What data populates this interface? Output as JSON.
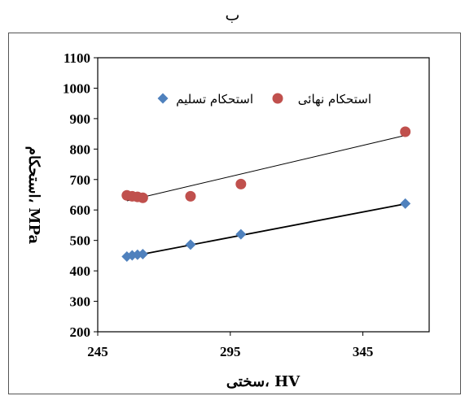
{
  "header": {
    "label": "ب"
  },
  "chart_data": {
    "type": "scatter",
    "title": "",
    "xlabel": "سختی، HV",
    "ylabel": "استحکام، MPa",
    "xlim": [
      245,
      370
    ],
    "ylim": [
      200,
      1100
    ],
    "xticks": [
      245,
      295,
      345
    ],
    "yticks": [
      200,
      300,
      400,
      500,
      600,
      700,
      800,
      900,
      1000,
      1100
    ],
    "grid": false,
    "legend_position": "top",
    "series": [
      {
        "name": "استحکام نهائی",
        "marker": "circle",
        "color": "#C0504D",
        "points": [
          [
            256,
            648
          ],
          [
            258,
            645
          ],
          [
            260,
            643
          ],
          [
            262,
            640
          ],
          [
            280,
            645
          ],
          [
            299,
            685
          ],
          [
            361,
            857
          ]
        ],
        "trendline": [
          [
            256,
            630
          ],
          [
            361,
            845
          ]
        ]
      },
      {
        "name": "استحکام تسلیم",
        "marker": "diamond",
        "color": "#4F81BD",
        "points": [
          [
            256,
            447
          ],
          [
            258,
            451
          ],
          [
            260,
            453
          ],
          [
            262,
            455
          ],
          [
            280,
            486
          ],
          [
            299,
            520
          ],
          [
            361,
            621
          ]
        ],
        "trendline": [
          [
            256,
            445
          ],
          [
            361,
            620
          ]
        ]
      }
    ]
  }
}
